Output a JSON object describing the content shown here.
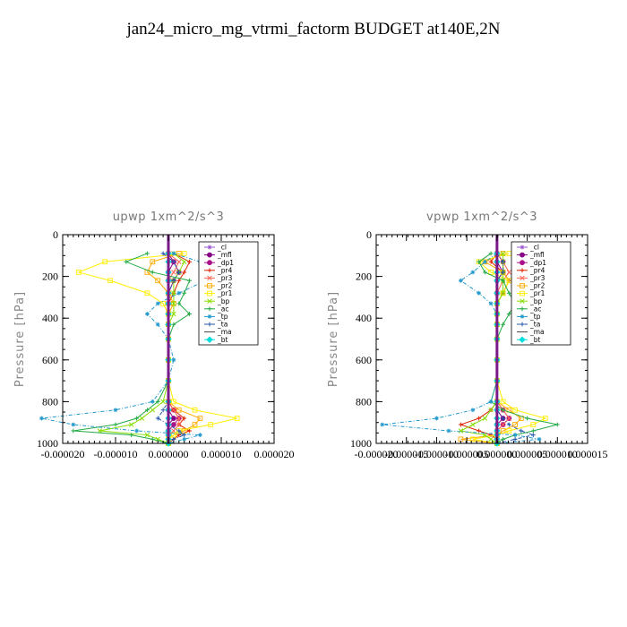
{
  "page_title": "jan24_micro_mg_vtrmi_factorm  BUDGET at140E,2N",
  "chart_data": [
    {
      "type": "line",
      "title": "upwp   1xm^2/s^3",
      "ylabel": "Pressure [hPa]",
      "xlabel": "",
      "ylim": [
        1000,
        0
      ],
      "y_ticks": [
        "0",
        "200",
        "400",
        "600",
        "800",
        "1000"
      ],
      "xlim": [
        -2e-05,
        2e-05
      ],
      "x_ticks": [
        "-0.000020",
        "-0.000010",
        "0.000000",
        "0.000010",
        "0.000020"
      ],
      "grid": false,
      "legend_placement": "top-right",
      "pressure": [
        90,
        130,
        180,
        220,
        280,
        330,
        380,
        430,
        500,
        600,
        700,
        800,
        840,
        880,
        910,
        940,
        960,
        980,
        1000
      ],
      "series": [
        {
          "name": "_cl",
          "color": "#9955cc",
          "values": [
            0,
            0,
            0,
            0,
            0,
            0,
            0,
            0,
            0,
            0,
            0,
            0,
            0,
            0,
            0,
            0,
            0,
            0,
            0
          ]
        },
        {
          "name": "_mfl",
          "color": "#880088",
          "values": [
            0,
            1e-06,
            0,
            0,
            0,
            0,
            0,
            0,
            0,
            0,
            0,
            0,
            0,
            1e-06,
            0,
            0,
            0,
            0,
            0
          ]
        },
        {
          "name": "_dp1",
          "color": "#aa1188",
          "values": [
            0,
            1e-06,
            2e-06,
            1e-06,
            0,
            0,
            0,
            0,
            0,
            0,
            0,
            0,
            1e-06,
            2e-06,
            1e-06,
            0,
            0,
            0,
            0
          ]
        },
        {
          "name": "_pr4",
          "color": "#dd2200",
          "values": [
            1e-06,
            4e-06,
            3e-06,
            2e-06,
            1e-06,
            0,
            0,
            0,
            0,
            0,
            0,
            0,
            1e-06,
            3e-06,
            2e-06,
            4e-06,
            2e-06,
            1e-06,
            0
          ]
        },
        {
          "name": "_pr3",
          "color": "#ff6655",
          "values": [
            0,
            2e-06,
            1e-06,
            0,
            0,
            0,
            0,
            0,
            0,
            0,
            0,
            0,
            1e-06,
            2e-06,
            2e-06,
            1e-06,
            0,
            0,
            0
          ]
        },
        {
          "name": "_pr2",
          "color": "#ffaa00",
          "values": [
            2e-06,
            -3e-06,
            -4e-06,
            -2e-06,
            0,
            1e-06,
            0,
            0,
            0,
            0,
            0,
            0,
            2e-06,
            6e-06,
            5e-06,
            3e-06,
            1e-06,
            0,
            0
          ]
        },
        {
          "name": "_pr1",
          "color": "#ffee00",
          "values": [
            3e-06,
            -1.2e-05,
            -1.7e-05,
            -1.1e-05,
            -4e-06,
            -1e-06,
            0,
            0,
            0,
            0,
            0,
            1e-06,
            5e-06,
            1.3e-05,
            8e-06,
            2e-06,
            1e-06,
            0,
            0
          ]
        },
        {
          "name": "_bp",
          "color": "#88dd00",
          "values": [
            1e-06,
            3e-06,
            2e-06,
            1e-06,
            1e-06,
            1e-06,
            1e-06,
            0,
            0,
            0,
            0,
            -1e-06,
            -3e-06,
            -5e-06,
            -7e-06,
            -1.3e-05,
            -4e-06,
            -2e-06,
            0
          ]
        },
        {
          "name": "_ac",
          "color": "#22aa44",
          "values": [
            -4e-06,
            -8e-06,
            -3e-06,
            4e-06,
            3e-06,
            2e-06,
            4e-06,
            1e-06,
            0,
            0,
            0,
            -2e-06,
            -4e-06,
            -6e-06,
            -1e-05,
            -1.8e-05,
            -7e-06,
            -3e-06,
            0
          ]
        },
        {
          "name": "_tp",
          "color": "#2299cc",
          "values": [
            1e-06,
            6e-06,
            1.5e-05,
            7e-06,
            2e-06,
            -2e-06,
            -4e-06,
            -2e-06,
            0,
            1e-06,
            0,
            -3e-06,
            -1e-05,
            -2.4e-05,
            -1.8e-05,
            -6e-06,
            6e-06,
            3e-06,
            0
          ]
        },
        {
          "name": "_ta",
          "color": "#2255aa",
          "values": [
            -1e-06,
            1e-06,
            2e-06,
            1e-06,
            0,
            0,
            0,
            0,
            0,
            0,
            0,
            0,
            -1e-06,
            -2e-06,
            0,
            2e-06,
            3e-06,
            1e-06,
            0
          ]
        },
        {
          "name": "_ma",
          "color": "#444444",
          "values": [
            0,
            0,
            0,
            0,
            0,
            0,
            0,
            0,
            0,
            0,
            0,
            0,
            0,
            0,
            0,
            0,
            0,
            0,
            0
          ]
        },
        {
          "name": "_bt",
          "color": "#00dddd",
          "values": [
            0,
            0,
            0,
            0,
            0,
            0,
            0,
            0,
            0,
            0,
            0,
            0,
            0,
            0,
            0,
            0,
            0,
            0,
            0
          ]
        }
      ]
    },
    {
      "type": "line",
      "title": "vpwp   1xm^2/s^3",
      "ylabel": "Pressure [hPa]",
      "xlabel": "",
      "ylim": [
        1000,
        0
      ],
      "y_ticks": [
        "0",
        "200",
        "400",
        "600",
        "800",
        "1000"
      ],
      "xlim": [
        -2e-05,
        1.5e-05
      ],
      "x_ticks": [
        "-0.000020",
        "-0.000015",
        "-0.000010",
        "-0.000005",
        "0.000000",
        "0.000005",
        "0.000010",
        "0.000015"
      ],
      "grid": false,
      "legend_placement": "top-right",
      "pressure": [
        90,
        130,
        180,
        220,
        280,
        330,
        380,
        430,
        500,
        600,
        700,
        800,
        840,
        880,
        910,
        940,
        960,
        980,
        1000
      ],
      "series": [
        {
          "name": "_cl",
          "color": "#9955cc",
          "values": [
            0,
            0,
            0,
            0,
            0,
            0,
            0,
            0,
            0,
            0,
            0,
            0,
            0,
            0,
            0,
            0,
            0,
            0,
            0
          ]
        },
        {
          "name": "_mfl",
          "color": "#880088",
          "values": [
            0,
            0,
            1e-06,
            0,
            0,
            0,
            0,
            0,
            0,
            0,
            0,
            0,
            0,
            1e-06,
            0,
            0,
            0,
            0,
            0
          ]
        },
        {
          "name": "_dp1",
          "color": "#aa1188",
          "values": [
            0,
            1e-06,
            1e-06,
            0,
            0,
            0,
            0,
            0,
            0,
            0,
            0,
            0,
            1e-06,
            2e-06,
            1e-06,
            0,
            0,
            0,
            0
          ]
        },
        {
          "name": "_pr4",
          "color": "#dd2200",
          "values": [
            0,
            -1e-06,
            1e-06,
            2e-06,
            1e-06,
            0,
            0,
            0,
            0,
            0,
            0,
            0,
            -1e-06,
            -3e-06,
            -6e-06,
            -3e-06,
            -1e-06,
            0,
            0
          ]
        },
        {
          "name": "_pr3",
          "color": "#ff6655",
          "values": [
            0,
            1e-06,
            2e-06,
            1e-06,
            0,
            0,
            0,
            0,
            0,
            0,
            0,
            0,
            1e-06,
            2e-06,
            1e-06,
            0,
            0,
            0,
            0
          ]
        },
        {
          "name": "_pr2",
          "color": "#ffaa00",
          "values": [
            1e-06,
            -2e-06,
            1e-06,
            2e-06,
            1e-06,
            0,
            0,
            0,
            0,
            0,
            0,
            0,
            2e-06,
            4e-06,
            3e-06,
            1e-06,
            0,
            -6e-06,
            0
          ]
        },
        {
          "name": "_pr1",
          "color": "#ffee00",
          "values": [
            2e-06,
            -3e-06,
            -1e-06,
            2e-06,
            1e-06,
            0,
            0,
            0,
            0,
            0,
            0,
            1e-06,
            3e-06,
            8e-06,
            6e-06,
            2e-06,
            0,
            -4e-06,
            0
          ]
        },
        {
          "name": "_bp",
          "color": "#88dd00",
          "values": [
            1e-06,
            1e-06,
            1e-06,
            1e-06,
            1e-06,
            0,
            0,
            0,
            0,
            0,
            0,
            0,
            -1e-06,
            -2e-06,
            -4e-06,
            -6e-06,
            -2e-06,
            -1e-06,
            0
          ]
        },
        {
          "name": "_ac",
          "color": "#22aa44",
          "values": [
            -1e-06,
            -3e-06,
            -2e-06,
            1e-06,
            2e-06,
            3e-06,
            2e-06,
            1e-06,
            0,
            0,
            0,
            -1e-06,
            1e-06,
            5e-06,
            1e-05,
            6e-06,
            3e-06,
            1e-06,
            0
          ]
        },
        {
          "name": "_tp",
          "color": "#2299cc",
          "values": [
            0,
            -2e-06,
            -4e-06,
            -6e-06,
            -3e-06,
            -1e-06,
            0,
            0,
            0,
            0,
            0,
            -1e-06,
            -4e-06,
            -1e-05,
            -1.9e-05,
            -8e-06,
            3e-06,
            7e-06,
            0
          ]
        },
        {
          "name": "_ta",
          "color": "#2255aa",
          "values": [
            0,
            1e-06,
            1e-06,
            0,
            0,
            0,
            0,
            0,
            0,
            0,
            0,
            0,
            0,
            1e-06,
            2e-06,
            4e-06,
            6e-06,
            3e-06,
            0
          ]
        },
        {
          "name": "_ma",
          "color": "#444444",
          "values": [
            0,
            0,
            0,
            0,
            0,
            0,
            0,
            0,
            0,
            0,
            0,
            0,
            0,
            0,
            0,
            0,
            0,
            0,
            0
          ]
        },
        {
          "name": "_bt",
          "color": "#00dddd",
          "values": [
            0,
            0,
            0,
            0,
            0,
            0,
            0,
            0,
            0,
            0,
            0,
            0,
            0,
            0,
            0,
            0,
            0,
            0,
            0
          ]
        }
      ]
    }
  ]
}
